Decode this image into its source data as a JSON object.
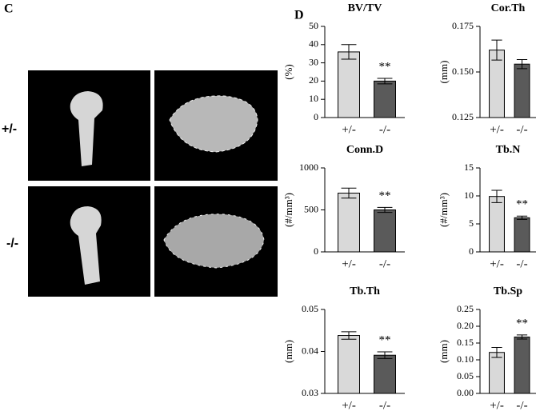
{
  "panel_labels": {
    "left": "C",
    "right": "D"
  },
  "row_labels": [
    "+/-",
    "-/-"
  ],
  "chart_data": [
    {
      "type": "bar",
      "title": "BV/TV",
      "y_label": "(%)",
      "categories": [
        "+/-",
        "-/-"
      ],
      "values": [
        36,
        20
      ],
      "errors": [
        4,
        1.5
      ],
      "colors": [
        "#d9d9d9",
        "#5a5a5a"
      ],
      "ylim": [
        0,
        50
      ],
      "yticks": [
        0,
        10,
        20,
        30,
        40,
        50
      ],
      "annotations": [
        {
          "text": "**",
          "category": "-/-"
        }
      ]
    },
    {
      "type": "bar",
      "title": "Cor.Th",
      "y_label": "(mm)",
      "categories": [
        "+/-",
        "-/-"
      ],
      "values": [
        0.162,
        0.1543
      ],
      "errors": [
        0.0055,
        0.0025
      ],
      "colors": [
        "#d9d9d9",
        "#5a5a5a"
      ],
      "ylim": [
        0.125,
        0.175
      ],
      "yticks": [
        0.125,
        {
          "value": 0.15,
          "label": "0.150"
        },
        0.175
      ],
      "annotations": []
    },
    {
      "type": "bar",
      "title": "Conn.D",
      "y_label": "(#/mm³)",
      "categories": [
        "+/-",
        "-/-"
      ],
      "values": [
        700,
        500
      ],
      "errors": [
        60,
        30
      ],
      "colors": [
        "#d9d9d9",
        "#5a5a5a"
      ],
      "ylim": [
        0,
        1000
      ],
      "yticks": [
        0,
        500,
        1000
      ],
      "annotations": [
        {
          "text": "**",
          "category": "-/-"
        }
      ]
    },
    {
      "type": "bar",
      "title": "Tb.N",
      "y_label": "(#/mm³)",
      "categories": [
        "+/-",
        "-/-"
      ],
      "values": [
        9.9,
        6.1
      ],
      "errors": [
        1.1,
        0.3
      ],
      "colors": [
        "#d9d9d9",
        "#5a5a5a"
      ],
      "ylim": [
        0,
        15
      ],
      "yticks": [
        0,
        5,
        10,
        15
      ],
      "annotations": [
        {
          "text": "**",
          "category": "-/-"
        }
      ]
    },
    {
      "type": "bar",
      "title": "Tb.Th",
      "y_label": "(mm)",
      "categories": [
        "+/-",
        "-/-"
      ],
      "values": [
        0.0438,
        0.0391
      ],
      "errors": [
        0.0009,
        0.0008
      ],
      "colors": [
        "#d9d9d9",
        "#5a5a5a"
      ],
      "ylim": [
        0.03,
        0.05
      ],
      "yticks": [
        0.03,
        0.04,
        0.05
      ],
      "annotations": [
        {
          "text": "**",
          "category": "-/-"
        }
      ]
    },
    {
      "type": "bar",
      "title": "Tb.Sp",
      "y_label": "(mm)",
      "categories": [
        "+/-",
        "-/-"
      ],
      "values": [
        0.122,
        0.168
      ],
      "errors": [
        0.015,
        0.006
      ],
      "colors": [
        "#d9d9d9",
        "#5a5a5a"
      ],
      "ylim": [
        0,
        0.25
      ],
      "yticks": [
        {
          "value": 0,
          "label": "0.00"
        },
        0.05,
        {
          "value": 0.1,
          "label": "0.10"
        },
        0.15,
        {
          "value": 0.2,
          "label": "0.20"
        },
        0.25
      ],
      "annotations": [
        {
          "text": "**",
          "category": "-/-"
        }
      ]
    }
  ]
}
